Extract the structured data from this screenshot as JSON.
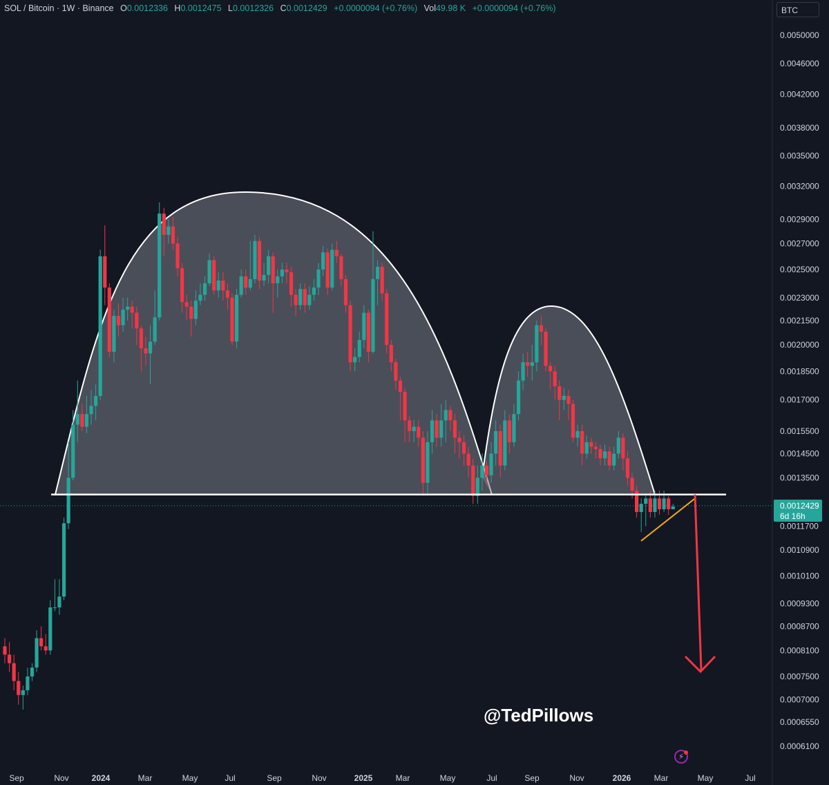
{
  "header": {
    "symbol": "SOL / Bitcoin · 1W · Binance",
    "o_label": "O",
    "o_value": "0.0012336",
    "h_label": "H",
    "h_value": "0.0012475",
    "l_label": "L",
    "l_value": "0.0012326",
    "c_label": "C",
    "c_value": "0.0012429",
    "change": "+0.0000094 (+0.76%)",
    "vol_label": "Vol",
    "vol_value": "49.98 K",
    "vol_change": "+0.0000094 (+0.76%)"
  },
  "currency_button": "BTC",
  "price_tag": {
    "price": "0.0012429",
    "countdown": "6d 16h"
  },
  "watermark": "@TedPillows",
  "colors": {
    "up": "#26a69a",
    "down": "#f23645",
    "background": "#131722",
    "arrow": "#f23645",
    "wedge": "#f5a623",
    "neckline": "#ffffff"
  },
  "chart_data": {
    "type": "candlestick",
    "y_scale": "log",
    "ylim": [
      0.00058,
      0.0053
    ],
    "y_ticks": [
      "0.0050000",
      "0.0046000",
      "0.0042000",
      "0.0038000",
      "0.0035000",
      "0.0032000",
      "0.0029000",
      "0.0027000",
      "0.0025000",
      "0.0023000",
      "0.0021500",
      "0.0020000",
      "0.0018500",
      "0.0017000",
      "0.0015500",
      "0.0014500",
      "0.0013500",
      "0.0011700",
      "0.0010900",
      "0.0010100",
      "0.0009300",
      "0.0008700",
      "0.0008100",
      "0.0007500",
      "0.0007000",
      "0.0006550",
      "0.0006100"
    ],
    "x_ticks": [
      "Sep",
      "Nov",
      "2024",
      "Mar",
      "May",
      "Jul",
      "Sep",
      "Nov",
      "2025",
      "Mar",
      "May",
      "Jul",
      "Sep",
      "Nov",
      "2026",
      "Mar",
      "May",
      "Jul"
    ],
    "candles": [
      [
        0.00082,
        0.0008,
        0.00084,
        0.00078
      ],
      [
        0.0008,
        0.00078,
        0.00083,
        0.00076
      ],
      [
        0.00078,
        0.00074,
        0.0008,
        0.00072
      ],
      [
        0.00074,
        0.00071,
        0.00076,
        0.00069
      ],
      [
        0.00071,
        0.00072,
        0.00073,
        0.00068
      ],
      [
        0.00072,
        0.00075,
        0.00077,
        0.00071
      ],
      [
        0.00075,
        0.00077,
        0.00078,
        0.00074
      ],
      [
        0.00077,
        0.00084,
        0.00086,
        0.00076
      ],
      [
        0.00084,
        0.00082,
        0.00087,
        0.00081
      ],
      [
        0.00082,
        0.00081,
        0.00085,
        0.0008
      ],
      [
        0.00081,
        0.00092,
        0.00094,
        0.0008
      ],
      [
        0.00092,
        0.00092,
        0.001,
        0.00091
      ],
      [
        0.00092,
        0.00095,
        0.001,
        0.0009
      ],
      [
        0.00095,
        0.00118,
        0.0012,
        0.00094
      ],
      [
        0.00118,
        0.00135,
        0.0015,
        0.00116
      ],
      [
        0.00135,
        0.00158,
        0.00165,
        0.00134
      ],
      [
        0.00158,
        0.00163,
        0.0018,
        0.0015
      ],
      [
        0.00163,
        0.00157,
        0.00168,
        0.00155
      ],
      [
        0.00157,
        0.00163,
        0.00172,
        0.00154
      ],
      [
        0.00163,
        0.00167,
        0.00175,
        0.00158
      ],
      [
        0.00167,
        0.00172,
        0.00178,
        0.0016
      ],
      [
        0.00172,
        0.0026,
        0.00265,
        0.0017
      ],
      [
        0.0026,
        0.00237,
        0.00285,
        0.00225
      ],
      [
        0.00237,
        0.00196,
        0.0024,
        0.00193
      ],
      [
        0.00196,
        0.00218,
        0.00222,
        0.0019
      ],
      [
        0.00218,
        0.00212,
        0.00226,
        0.00205
      ],
      [
        0.00212,
        0.00222,
        0.0023,
        0.00208
      ],
      [
        0.00222,
        0.00224,
        0.0023,
        0.00215
      ],
      [
        0.00224,
        0.0022,
        0.00228,
        0.0021
      ],
      [
        0.0022,
        0.0021,
        0.00224,
        0.002
      ],
      [
        0.0021,
        0.00198,
        0.00212,
        0.00185
      ],
      [
        0.00198,
        0.00195,
        0.00205,
        0.00188
      ],
      [
        0.00195,
        0.00202,
        0.00212,
        0.00178
      ],
      [
        0.00202,
        0.00217,
        0.00235,
        0.002
      ],
      [
        0.00217,
        0.00295,
        0.00305,
        0.00215
      ],
      [
        0.00295,
        0.00277,
        0.003,
        0.0026
      ],
      [
        0.00277,
        0.00284,
        0.0029,
        0.0027
      ],
      [
        0.00284,
        0.0027,
        0.00292,
        0.00265
      ],
      [
        0.0027,
        0.00251,
        0.00275,
        0.00245
      ],
      [
        0.00251,
        0.00227,
        0.00255,
        0.0022
      ],
      [
        0.00227,
        0.00224,
        0.00232,
        0.00215
      ],
      [
        0.00224,
        0.00216,
        0.00228,
        0.00205
      ],
      [
        0.00216,
        0.00228,
        0.00235,
        0.00212
      ],
      [
        0.00228,
        0.00232,
        0.0024,
        0.00225
      ],
      [
        0.00232,
        0.0024,
        0.00245,
        0.00228
      ],
      [
        0.0024,
        0.00257,
        0.00262,
        0.00238
      ],
      [
        0.00257,
        0.00235,
        0.0026,
        0.00232
      ],
      [
        0.00235,
        0.00242,
        0.00248,
        0.0023
      ],
      [
        0.00242,
        0.00235,
        0.00248,
        0.00228
      ],
      [
        0.00235,
        0.0023,
        0.0024,
        0.00222
      ],
      [
        0.0023,
        0.00202,
        0.00233,
        0.002
      ],
      [
        0.00202,
        0.00232,
        0.00236,
        0.00198
      ],
      [
        0.00232,
        0.00245,
        0.0025,
        0.0023
      ],
      [
        0.00245,
        0.00237,
        0.0025,
        0.00232
      ],
      [
        0.00237,
        0.00243,
        0.00272,
        0.00235
      ],
      [
        0.00243,
        0.00272,
        0.00277,
        0.0024
      ],
      [
        0.00272,
        0.00242,
        0.00275,
        0.00236
      ],
      [
        0.00242,
        0.00246,
        0.00255,
        0.00238
      ],
      [
        0.00246,
        0.0026,
        0.00265,
        0.0024
      ],
      [
        0.0026,
        0.0024,
        0.00263,
        0.0022
      ],
      [
        0.0024,
        0.00245,
        0.0025,
        0.0023
      ],
      [
        0.00245,
        0.0025,
        0.00255,
        0.0024
      ],
      [
        0.0025,
        0.00248,
        0.00255,
        0.0024
      ],
      [
        0.00248,
        0.00232,
        0.00252,
        0.00224
      ],
      [
        0.00232,
        0.00225,
        0.00236,
        0.00218
      ],
      [
        0.00225,
        0.00236,
        0.0024,
        0.00222
      ],
      [
        0.00236,
        0.00225,
        0.0024,
        0.0022
      ],
      [
        0.00225,
        0.00232,
        0.00238,
        0.00222
      ],
      [
        0.00232,
        0.00237,
        0.00243,
        0.00228
      ],
      [
        0.00237,
        0.0025,
        0.00255,
        0.00232
      ],
      [
        0.0025,
        0.00263,
        0.00268,
        0.00245
      ],
      [
        0.00263,
        0.00237,
        0.00266,
        0.00232
      ],
      [
        0.00237,
        0.00265,
        0.0027,
        0.00235
      ],
      [
        0.00265,
        0.0026,
        0.00272,
        0.00255
      ],
      [
        0.0026,
        0.00243,
        0.00262,
        0.00238
      ],
      [
        0.00243,
        0.00225,
        0.00246,
        0.0022
      ],
      [
        0.00225,
        0.0019,
        0.00228,
        0.00185
      ],
      [
        0.0019,
        0.00193,
        0.00198,
        0.00185
      ],
      [
        0.00193,
        0.00203,
        0.00208,
        0.0019
      ],
      [
        0.00203,
        0.0022,
        0.00225,
        0.00198
      ],
      [
        0.0022,
        0.00196,
        0.00222,
        0.0019
      ],
      [
        0.00196,
        0.00243,
        0.0028,
        0.00195
      ],
      [
        0.00243,
        0.00252,
        0.00257,
        0.00225
      ],
      [
        0.00252,
        0.00233,
        0.00255,
        0.00228
      ],
      [
        0.00233,
        0.002,
        0.00236,
        0.00195
      ],
      [
        0.002,
        0.0019,
        0.00203,
        0.00185
      ],
      [
        0.0019,
        0.0018,
        0.00192,
        0.00175
      ],
      [
        0.0018,
        0.00174,
        0.00182,
        0.0016
      ],
      [
        0.00174,
        0.0016,
        0.00176,
        0.0015
      ],
      [
        0.0016,
        0.00155,
        0.00162,
        0.0015
      ],
      [
        0.00155,
        0.00157,
        0.0016,
        0.0015
      ],
      [
        0.00157,
        0.00152,
        0.0016,
        0.00148
      ],
      [
        0.00152,
        0.00133,
        0.00155,
        0.00128
      ],
      [
        0.00133,
        0.0015,
        0.00155,
        0.00128
      ],
      [
        0.0015,
        0.0016,
        0.00165,
        0.00145
      ],
      [
        0.0016,
        0.00152,
        0.00163,
        0.00148
      ],
      [
        0.00152,
        0.0016,
        0.00168,
        0.00148
      ],
      [
        0.0016,
        0.00165,
        0.0017,
        0.0015
      ],
      [
        0.00165,
        0.0016,
        0.00167,
        0.00155
      ],
      [
        0.0016,
        0.00152,
        0.00163,
        0.00145
      ],
      [
        0.00152,
        0.0015,
        0.00155,
        0.00143
      ],
      [
        0.0015,
        0.00145,
        0.00153,
        0.0014
      ],
      [
        0.00145,
        0.0014,
        0.00148,
        0.00135
      ],
      [
        0.0014,
        0.00128,
        0.00143,
        0.00125
      ],
      [
        0.00128,
        0.00135,
        0.0014,
        0.00125
      ],
      [
        0.00135,
        0.0014,
        0.00145,
        0.0013
      ],
      [
        0.0014,
        0.00136,
        0.00142,
        0.00132
      ],
      [
        0.00136,
        0.00145,
        0.0015,
        0.00133
      ],
      [
        0.00145,
        0.00155,
        0.0016,
        0.0014
      ],
      [
        0.00155,
        0.0014,
        0.00158,
        0.00135
      ],
      [
        0.0014,
        0.0016,
        0.00165,
        0.00138
      ],
      [
        0.0016,
        0.0015,
        0.00163,
        0.00145
      ],
      [
        0.0015,
        0.00163,
        0.00168,
        0.00148
      ],
      [
        0.00163,
        0.0018,
        0.00185,
        0.0016
      ],
      [
        0.0018,
        0.0019,
        0.00195,
        0.00175
      ],
      [
        0.0019,
        0.00188,
        0.00196,
        0.00182
      ],
      [
        0.00188,
        0.0019,
        0.002,
        0.0018
      ],
      [
        0.0019,
        0.00212,
        0.00215,
        0.00185
      ],
      [
        0.00212,
        0.00208,
        0.00218,
        0.002
      ],
      [
        0.00208,
        0.00188,
        0.0021,
        0.00185
      ],
      [
        0.00188,
        0.00185,
        0.0019,
        0.00175
      ],
      [
        0.00185,
        0.00177,
        0.00188,
        0.0017
      ],
      [
        0.00177,
        0.0017,
        0.0018,
        0.0016
      ],
      [
        0.0017,
        0.00172,
        0.00176,
        0.00165
      ],
      [
        0.00172,
        0.00168,
        0.00175,
        0.0016
      ],
      [
        0.00168,
        0.00152,
        0.0017,
        0.0015
      ],
      [
        0.00152,
        0.00155,
        0.00158,
        0.00148
      ],
      [
        0.00155,
        0.00145,
        0.00158,
        0.0014
      ],
      [
        0.00145,
        0.0015,
        0.00153,
        0.00143
      ],
      [
        0.0015,
        0.00148,
        0.00152,
        0.00145
      ],
      [
        0.00148,
        0.00147,
        0.0015,
        0.00143
      ],
      [
        0.00147,
        0.00143,
        0.00149,
        0.0014
      ],
      [
        0.00143,
        0.00146,
        0.00149,
        0.0014
      ],
      [
        0.00146,
        0.0014,
        0.00148,
        0.00138
      ],
      [
        0.0014,
        0.00145,
        0.00148,
        0.00138
      ],
      [
        0.00145,
        0.00152,
        0.00155,
        0.00143
      ],
      [
        0.00152,
        0.00143,
        0.00154,
        0.00138
      ],
      [
        0.00143,
        0.00135,
        0.00146,
        0.00132
      ],
      [
        0.00135,
        0.0013,
        0.00137,
        0.00127
      ],
      [
        0.0013,
        0.00122,
        0.00132,
        0.0012
      ],
      [
        0.00122,
        0.00125,
        0.00127,
        0.00115
      ],
      [
        0.00125,
        0.00127,
        0.00129,
        0.00117
      ],
      [
        0.00127,
        0.00122,
        0.0013,
        0.0012
      ],
      [
        0.00122,
        0.00127,
        0.0013,
        0.0012
      ],
      [
        0.00127,
        0.00123,
        0.0013,
        0.00121
      ],
      [
        0.00123,
        0.00127,
        0.0013,
        0.00122
      ],
      [
        0.00127,
        0.00123,
        0.00128,
        0.00121
      ],
      [
        0.00123,
        0.00124,
        0.00125,
        0.00123
      ]
    ],
    "shapes": {
      "neckline": {
        "start": "Oct 2023",
        "end": "May 2026",
        "price": 0.001285
      },
      "projection_arrow": {
        "from_price": 0.001285,
        "to_price": 0.00076
      },
      "wedge_line": {
        "from_price": 0.00112,
        "to_price": 0.00127
      }
    }
  }
}
